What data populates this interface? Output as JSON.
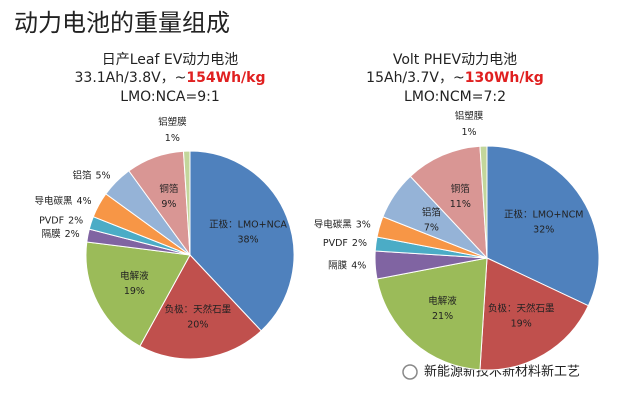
{
  "title": "动力电池的重量组成",
  "watermark": "新能源新技术新材料新工艺",
  "chart_data": [
    {
      "type": "pie",
      "subtitle": [
        "日产Leaf EV动力电池",
        "33.1Ah/3.8V，~",
        "LMO:NCA=9:1"
      ],
      "highlight": "154Wh/kg",
      "categories": [
        "正极：LMO+NCA",
        "负极：天然石墨",
        "电解液",
        "隔膜",
        "PVDF",
        "导电碳黑",
        "铝箔",
        "铜箔",
        "铝塑膜"
      ],
      "values": [
        38,
        20,
        19,
        2,
        2,
        4,
        5,
        9,
        1
      ],
      "value_labels": [
        "38%",
        "20%",
        "19%",
        "2%",
        "2%",
        "4%",
        "5%",
        "9%",
        "1%"
      ],
      "colors": [
        "#4f81bd",
        "#c0504d",
        "#9bbb59",
        "#8064a2",
        "#4bacc6",
        "#f79646",
        "#95b3d7",
        "#d99694",
        "#c3d69b"
      ]
    },
    {
      "type": "pie",
      "subtitle": [
        "Volt PHEV动力电池",
        "15Ah/3.7V，~",
        "LMO:NCM=7:2"
      ],
      "highlight": "130Wh/kg",
      "categories": [
        "正极：LMO+NCM",
        "负极：天然石墨",
        "电解液",
        "隔膜",
        "PVDF",
        "导电碳黑",
        "铝箔",
        "铜箔",
        "铝塑膜"
      ],
      "values": [
        32,
        19,
        21,
        4,
        2,
        3,
        7,
        11,
        1
      ],
      "value_labels": [
        "32%",
        "19%",
        "21%",
        "4%",
        "2%",
        "3%",
        "7%",
        "11%",
        "1%"
      ],
      "colors": [
        "#4f81bd",
        "#c0504d",
        "#9bbb59",
        "#8064a2",
        "#4bacc6",
        "#f79646",
        "#95b3d7",
        "#d99694",
        "#c3d69b"
      ]
    }
  ]
}
